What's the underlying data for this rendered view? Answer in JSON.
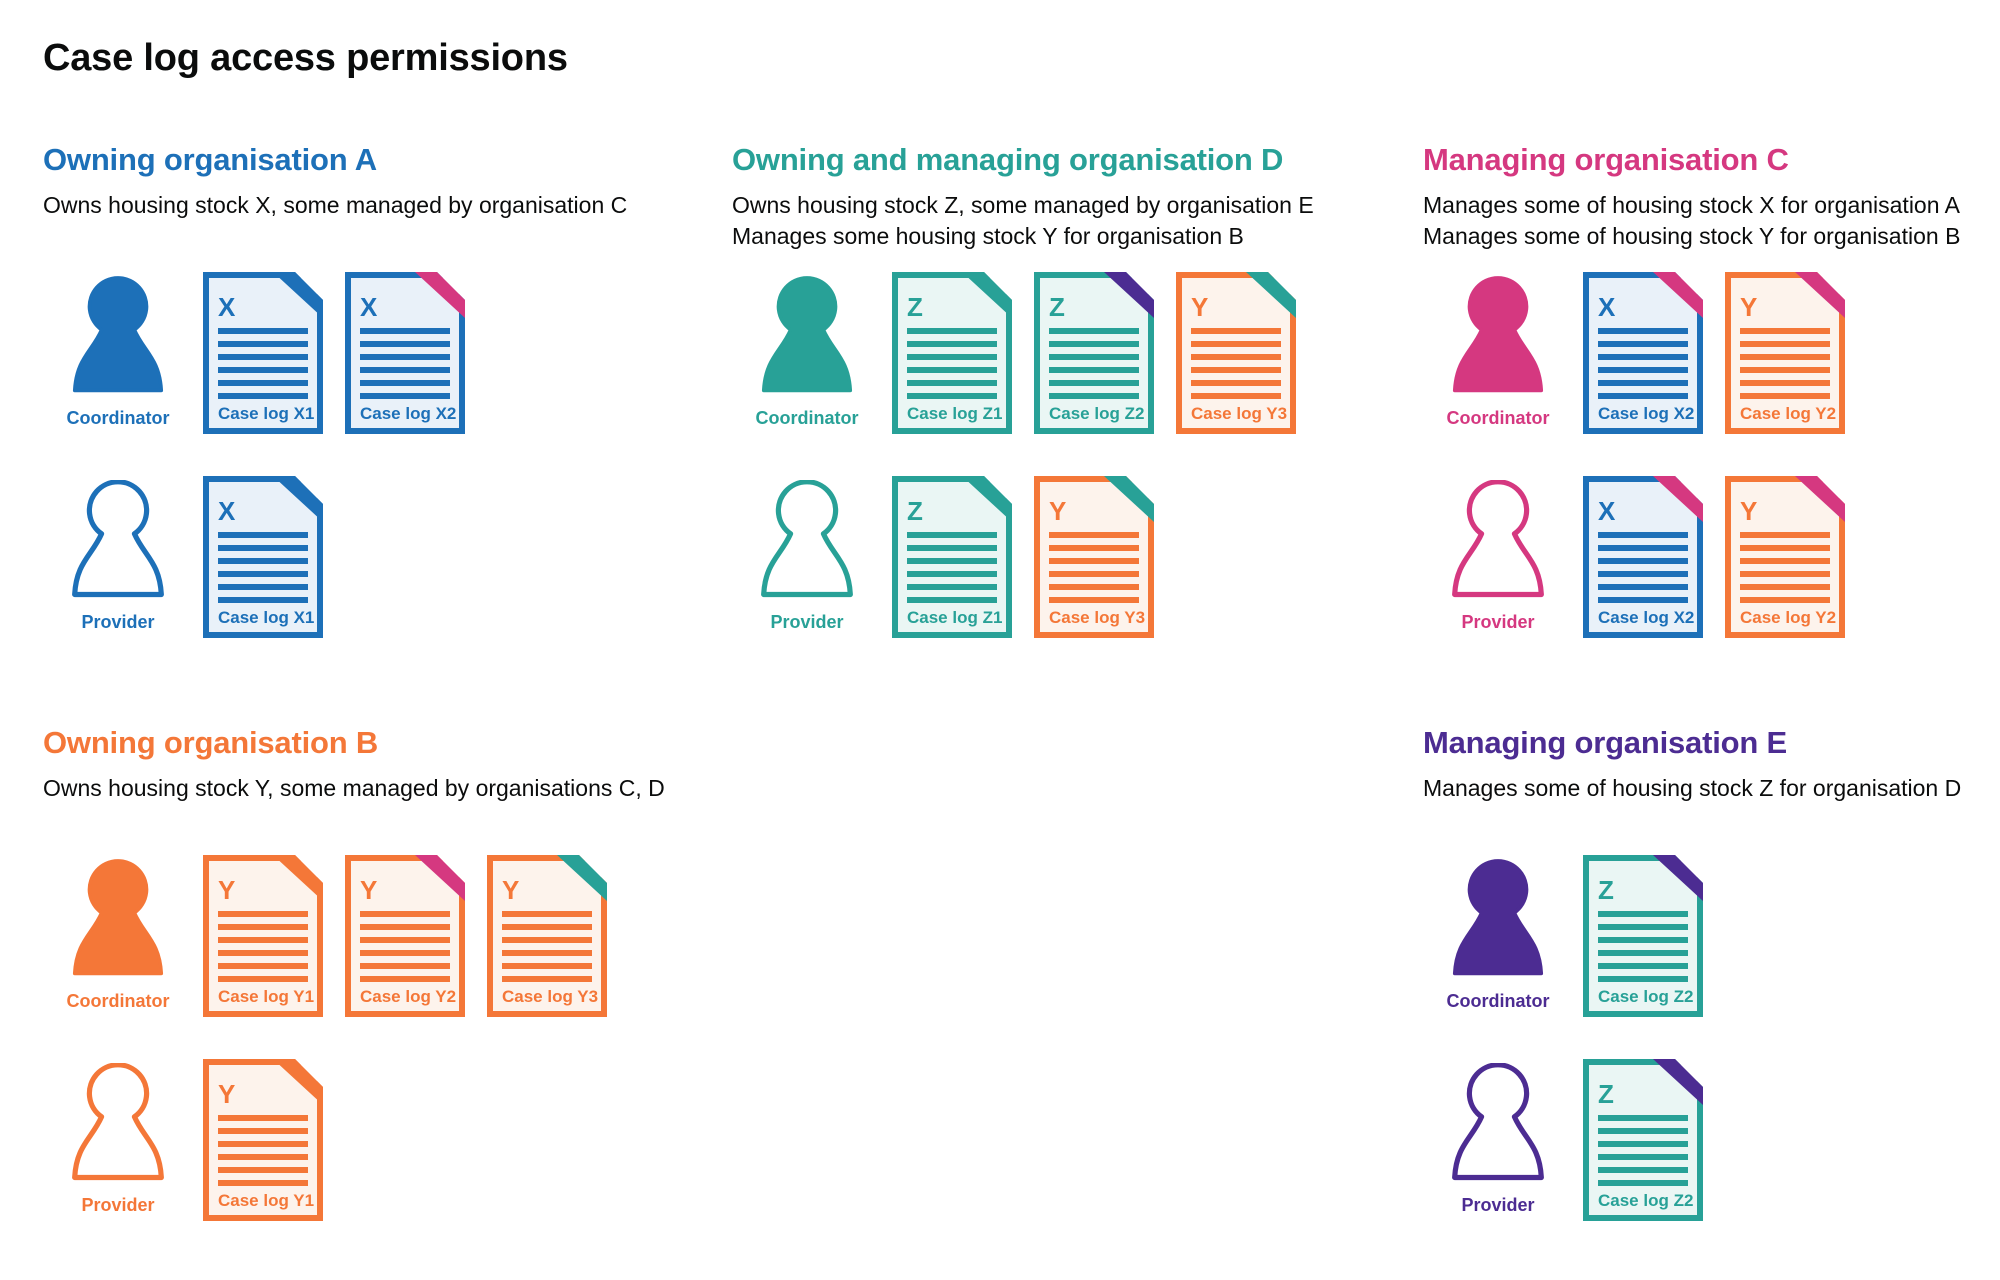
{
  "title": "Case log access permissions",
  "colors": {
    "text": "#0b0c0c",
    "blue": "#1d70b8",
    "teal": "#28a197",
    "pink": "#d53880",
    "orange": "#f47738",
    "purple": "#4c2c92",
    "blue_tint": "#e9f1f9",
    "teal_tint": "#eaf6f4",
    "orange_tint": "#fdf3ec",
    "white": "#ffffff"
  },
  "stock_colors": {
    "X": "blue",
    "Y": "orange",
    "Z": "teal"
  },
  "orgs": [
    {
      "id": "A",
      "color": "blue",
      "heading": "Owning organisation A",
      "desc": [
        "Owns housing stock X, some managed by organisation C"
      ],
      "roles": [
        {
          "label": "Coordinator",
          "filled": true,
          "docs": [
            {
              "letter": "X",
              "label": "Case log X1",
              "fold": "blue"
            },
            {
              "letter": "X",
              "label": "Case log X2",
              "fold": "pink"
            }
          ]
        },
        {
          "label": "Provider",
          "filled": false,
          "docs": [
            {
              "letter": "X",
              "label": "Case log X1",
              "fold": "blue"
            }
          ]
        }
      ]
    },
    {
      "id": "D",
      "color": "teal",
      "heading": "Owning and managing organisation D",
      "desc": [
        "Owns housing stock Z, some managed by organisation E",
        "Manages some housing stock Y for organisation B"
      ],
      "roles": [
        {
          "label": "Coordinator",
          "filled": true,
          "docs": [
            {
              "letter": "Z",
              "label": "Case log Z1",
              "fold": "teal"
            },
            {
              "letter": "Z",
              "label": "Case log Z2",
              "fold": "purple"
            },
            {
              "letter": "Y",
              "label": "Case log Y3",
              "fold": "teal"
            }
          ]
        },
        {
          "label": "Provider",
          "filled": false,
          "docs": [
            {
              "letter": "Z",
              "label": "Case log Z1",
              "fold": "teal"
            },
            {
              "letter": "Y",
              "label": "Case log Y3",
              "fold": "teal"
            }
          ]
        }
      ]
    },
    {
      "id": "C",
      "color": "pink",
      "heading": "Managing organisation C",
      "desc": [
        "Manages some of housing stock X for organisation A",
        "Manages some of housing stock Y for organisation B"
      ],
      "roles": [
        {
          "label": "Coordinator",
          "filled": true,
          "docs": [
            {
              "letter": "X",
              "label": "Case log X2",
              "fold": "pink"
            },
            {
              "letter": "Y",
              "label": "Case log Y2",
              "fold": "pink"
            }
          ]
        },
        {
          "label": "Provider",
          "filled": false,
          "docs": [
            {
              "letter": "X",
              "label": "Case log X2",
              "fold": "pink"
            },
            {
              "letter": "Y",
              "label": "Case log Y2",
              "fold": "pink"
            }
          ]
        }
      ]
    },
    {
      "id": "B",
      "color": "orange",
      "heading": "Owning organisation B",
      "desc": [
        "Owns housing stock Y, some managed by organisations C, D"
      ],
      "roles": [
        {
          "label": "Coordinator",
          "filled": true,
          "docs": [
            {
              "letter": "Y",
              "label": "Case log Y1",
              "fold": "orange"
            },
            {
              "letter": "Y",
              "label": "Case log Y2",
              "fold": "pink"
            },
            {
              "letter": "Y",
              "label": "Case log Y3",
              "fold": "teal"
            }
          ]
        },
        {
          "label": "Provider",
          "filled": false,
          "docs": [
            {
              "letter": "Y",
              "label": "Case log Y1",
              "fold": "orange"
            }
          ]
        }
      ]
    },
    {
      "id": "E",
      "color": "purple",
      "heading": "Managing organisation E",
      "desc": [
        "Manages some of housing stock Z for organisation D"
      ],
      "roles": [
        {
          "label": "Coordinator",
          "filled": true,
          "docs": [
            {
              "letter": "Z",
              "label": "Case log Z2",
              "fold": "purple"
            }
          ]
        },
        {
          "label": "Provider",
          "filled": false,
          "docs": [
            {
              "letter": "Z",
              "label": "Case log Z2",
              "fold": "purple"
            }
          ]
        }
      ]
    }
  ]
}
